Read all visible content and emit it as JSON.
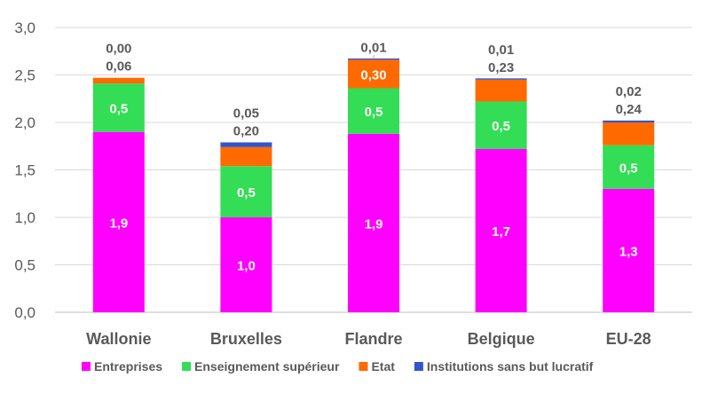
{
  "chart_data": {
    "type": "bar",
    "stacked": true,
    "categories": [
      "Wallonie",
      "Bruxelles",
      "Flandre",
      "Belgique",
      "EU-28"
    ],
    "series": [
      {
        "name": "Entreprises",
        "color": "#FF00FF",
        "values": [
          1.9,
          1.0,
          1.88,
          1.72,
          1.3
        ],
        "labels": [
          "1,9",
          "1,0",
          "1,9",
          "1,7",
          "1,3"
        ]
      },
      {
        "name": "Enseignement supérieur",
        "color": "#33DD55",
        "values": [
          0.51,
          0.54,
          0.48,
          0.5,
          0.46
        ],
        "labels": [
          "0,5",
          "0,5",
          "0,5",
          "0,5",
          "0,5"
        ]
      },
      {
        "name": "Etat",
        "color": "#FF6A00",
        "values": [
          0.06,
          0.2,
          0.3,
          0.23,
          0.24
        ],
        "labels": [
          "0,06",
          "0,20",
          "0,30",
          "0,23",
          "0,24"
        ]
      },
      {
        "name": "Institutions sans but lucratif",
        "color": "#3355CC",
        "values": [
          0.0,
          0.05,
          0.01,
          0.01,
          0.02
        ],
        "labels": [
          "0,00",
          "0,05",
          "0,01",
          "0,01",
          "0,02"
        ]
      }
    ],
    "y_ticks": [
      "0,0",
      "0,5",
      "1,0",
      "1,5",
      "2,0",
      "2,5",
      "3,0"
    ],
    "ylim": [
      0,
      3.0
    ],
    "grid": true,
    "legend": "bottom"
  }
}
